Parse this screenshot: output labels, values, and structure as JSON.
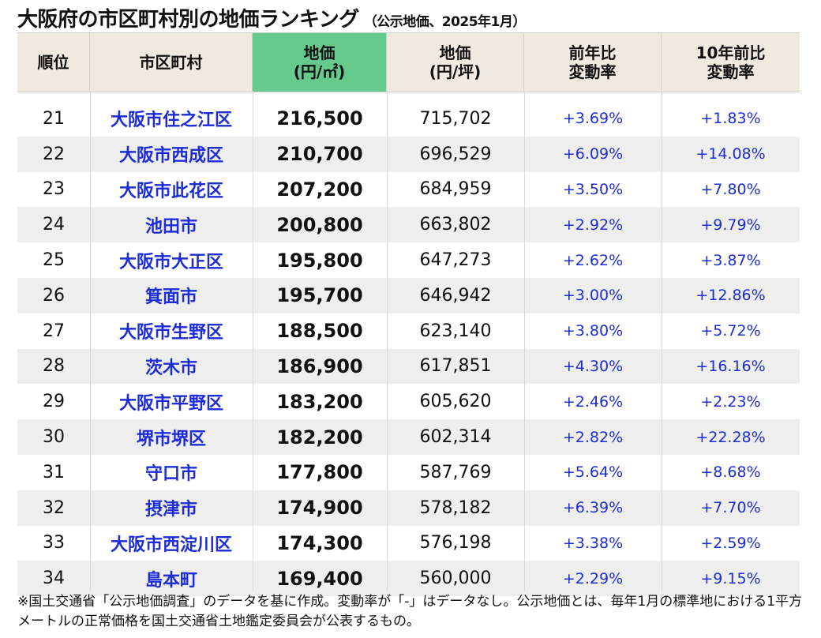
{
  "title": "大阪府の市区町村別の地価ランキング",
  "subtitle": "（公示地価、2025年1月）",
  "header": {
    "rank": "順位",
    "city": "市区町村",
    "price_m2_line1": "地価",
    "price_m2_line2": "(円/㎡)",
    "price_tsubo_line1": "地価",
    "price_tsubo_line2": "(円/坪)",
    "yoy_line1": "前年比",
    "yoy_line2": "変動率",
    "tenyr_line1": "10年前比",
    "tenyr_line2": "変動率"
  },
  "colors": {
    "header_bg": "#efe9df",
    "highlight_header_bg": "#66c98e",
    "link_blue": "#1d2cd6",
    "alt_row_bg": "#eeeeee"
  },
  "rows": [
    {
      "rank": "21",
      "city": "大阪市住之江区",
      "price_m2": "216,500",
      "price_tsubo": "715,702",
      "yoy": "+3.69%",
      "ten_year": "+1.83%"
    },
    {
      "rank": "22",
      "city": "大阪市西成区",
      "price_m2": "210,700",
      "price_tsubo": "696,529",
      "yoy": "+6.09%",
      "ten_year": "+14.08%"
    },
    {
      "rank": "23",
      "city": "大阪市此花区",
      "price_m2": "207,200",
      "price_tsubo": "684,959",
      "yoy": "+3.50%",
      "ten_year": "+7.80%"
    },
    {
      "rank": "24",
      "city": "池田市",
      "price_m2": "200,800",
      "price_tsubo": "663,802",
      "yoy": "+2.92%",
      "ten_year": "+9.79%"
    },
    {
      "rank": "25",
      "city": "大阪市大正区",
      "price_m2": "195,800",
      "price_tsubo": "647,273",
      "yoy": "+2.62%",
      "ten_year": "+3.87%"
    },
    {
      "rank": "26",
      "city": "箕面市",
      "price_m2": "195,700",
      "price_tsubo": "646,942",
      "yoy": "+3.00%",
      "ten_year": "+12.86%"
    },
    {
      "rank": "27",
      "city": "大阪市生野区",
      "price_m2": "188,500",
      "price_tsubo": "623,140",
      "yoy": "+3.80%",
      "ten_year": "+5.72%"
    },
    {
      "rank": "28",
      "city": "茨木市",
      "price_m2": "186,900",
      "price_tsubo": "617,851",
      "yoy": "+4.30%",
      "ten_year": "+16.16%"
    },
    {
      "rank": "29",
      "city": "大阪市平野区",
      "price_m2": "183,200",
      "price_tsubo": "605,620",
      "yoy": "+2.46%",
      "ten_year": "+2.23%"
    },
    {
      "rank": "30",
      "city": "堺市堺区",
      "price_m2": "182,200",
      "price_tsubo": "602,314",
      "yoy": "+2.82%",
      "ten_year": "+22.28%"
    },
    {
      "rank": "31",
      "city": "守口市",
      "price_m2": "177,800",
      "price_tsubo": "587,769",
      "yoy": "+5.64%",
      "ten_year": "+8.68%"
    },
    {
      "rank": "32",
      "city": "摂津市",
      "price_m2": "174,900",
      "price_tsubo": "578,182",
      "yoy": "+6.39%",
      "ten_year": "+7.70%"
    },
    {
      "rank": "33",
      "city": "大阪市西淀川区",
      "price_m2": "174,300",
      "price_tsubo": "576,198",
      "yoy": "+3.38%",
      "ten_year": "+2.59%"
    },
    {
      "rank": "34",
      "city": "島本町",
      "price_m2": "169,400",
      "price_tsubo": "560,000",
      "yoy": "+2.29%",
      "ten_year": "+9.15%"
    }
  ],
  "footnote": "※国土交通省「公示地価調査」のデータを基に作成。変動率が「-」はデータなし。公示地価とは、毎年1月の標準地における1平方メートルの正常価格を国土交通省土地鑑定委員会が公表するもの。"
}
